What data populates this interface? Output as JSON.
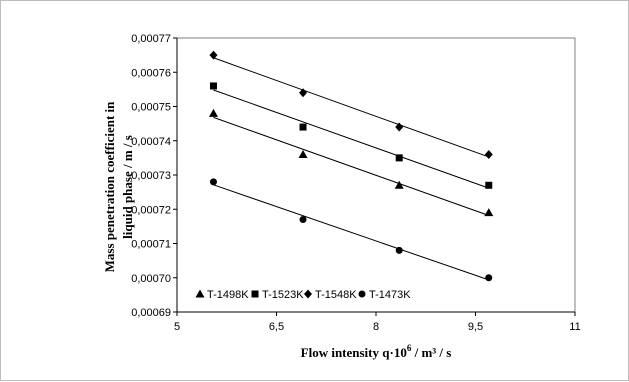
{
  "chart_data": {
    "type": "scatter",
    "xlabel_main": "Flow  intensity  q·10",
    "xlabel_sup": "6",
    "xlabel_end": " / m³ / s",
    "ylabel_line1": "Mass penetration  coefficient in",
    "ylabel_line2": "liquid phase / m / s",
    "xlim": [
      5,
      11
    ],
    "ylim": [
      0.00069,
      0.00077
    ],
    "x_ticks": [
      "5",
      "6,5",
      "8",
      "9,5",
      "11"
    ],
    "y_ticks": [
      "0,00069",
      "0,00070",
      "0,00071",
      "0,00072",
      "0,00073",
      "0,00074",
      "0,00075",
      "0,00076",
      "0,00077"
    ],
    "grid": false,
    "legend_position": "bottom",
    "trendlines": true,
    "series": [
      {
        "name": "T-1498K",
        "marker": "triangle",
        "x": [
          5.55,
          6.9,
          8.35,
          9.7
        ],
        "y": [
          0.000748,
          0.000736,
          0.000727,
          0.000719
        ]
      },
      {
        "name": "T-1523K",
        "marker": "square",
        "x": [
          5.55,
          6.9,
          8.35,
          9.7
        ],
        "y": [
          0.000756,
          0.000744,
          0.000735,
          0.000727
        ]
      },
      {
        "name": "T-1548K",
        "marker": "diamond",
        "x": [
          5.55,
          6.9,
          8.35,
          9.7
        ],
        "y": [
          0.000765,
          0.000754,
          0.000744,
          0.000736
        ]
      },
      {
        "name": "T-1473K",
        "marker": "circle",
        "x": [
          5.55,
          6.9,
          8.35,
          9.7
        ],
        "y": [
          0.000728,
          0.000717,
          0.000708,
          0.0007
        ]
      }
    ]
  }
}
